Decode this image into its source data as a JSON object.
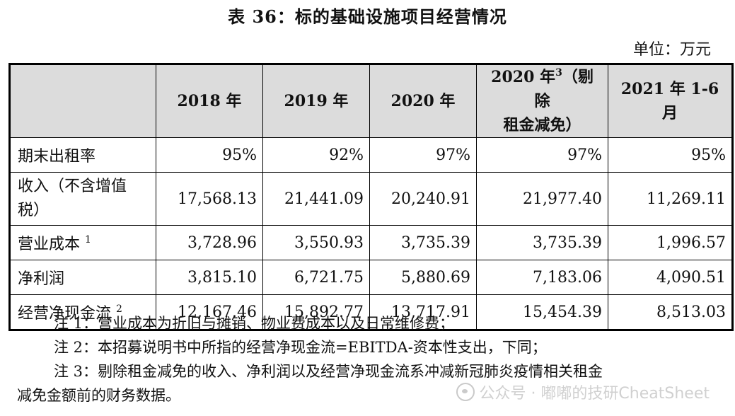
{
  "title": "表 36：标的基础设施项目经营情况",
  "unit": "单位：万元",
  "table": {
    "corner": "",
    "headers": [
      {
        "text": "2018 年",
        "sup": ""
      },
      {
        "text": "2019 年",
        "sup": ""
      },
      {
        "text": "2020 年",
        "sup": ""
      },
      {
        "line1_pre": "2020 年",
        "sup": "3",
        "line1_post": "（剔除",
        "line2": "租金减免）"
      },
      {
        "line1": "2021 年 1-6",
        "line2": "月"
      }
    ],
    "rows": [
      {
        "label": "期末出租率",
        "sup": "",
        "values": [
          "95%",
          "92%",
          "97%",
          "97%",
          "95%"
        ]
      },
      {
        "label_line1": "收入（不含增值",
        "label_line2": "税）",
        "sup": "",
        "values": [
          "17,568.13",
          "21,441.09",
          "20,240.91",
          "21,977.40",
          "11,269.11"
        ]
      },
      {
        "label": "营业成本",
        "sup": "1",
        "values": [
          "3,728.96",
          "3,550.93",
          "3,735.39",
          "3,735.39",
          "1,996.57"
        ]
      },
      {
        "label": "净利润",
        "sup": "",
        "values": [
          "3,815.10",
          "6,721.75",
          "5,880.69",
          "7,183.06",
          "4,090.51"
        ]
      },
      {
        "label": "经营净现金流",
        "sup": "2",
        "values": [
          "12,167.46",
          "15,892.77",
          "13,717.91",
          "15,454.39",
          "8,513.03"
        ]
      }
    ]
  },
  "notes": [
    "注 1：营业成本为折旧与摊销、物业费成本以及日常维修费；",
    "注 2：本招募说明书中所指的经营净现金流=EBITDA-资本性支出，下同；",
    "注 3：剔除租金减免的收入、净利润以及经营净现金流系冲减新冠肺炎疫情相关租金",
    "减免金额前的财务数据。"
  ],
  "watermark": "公众号 · 嘟嘟的技研CheatSheet"
}
